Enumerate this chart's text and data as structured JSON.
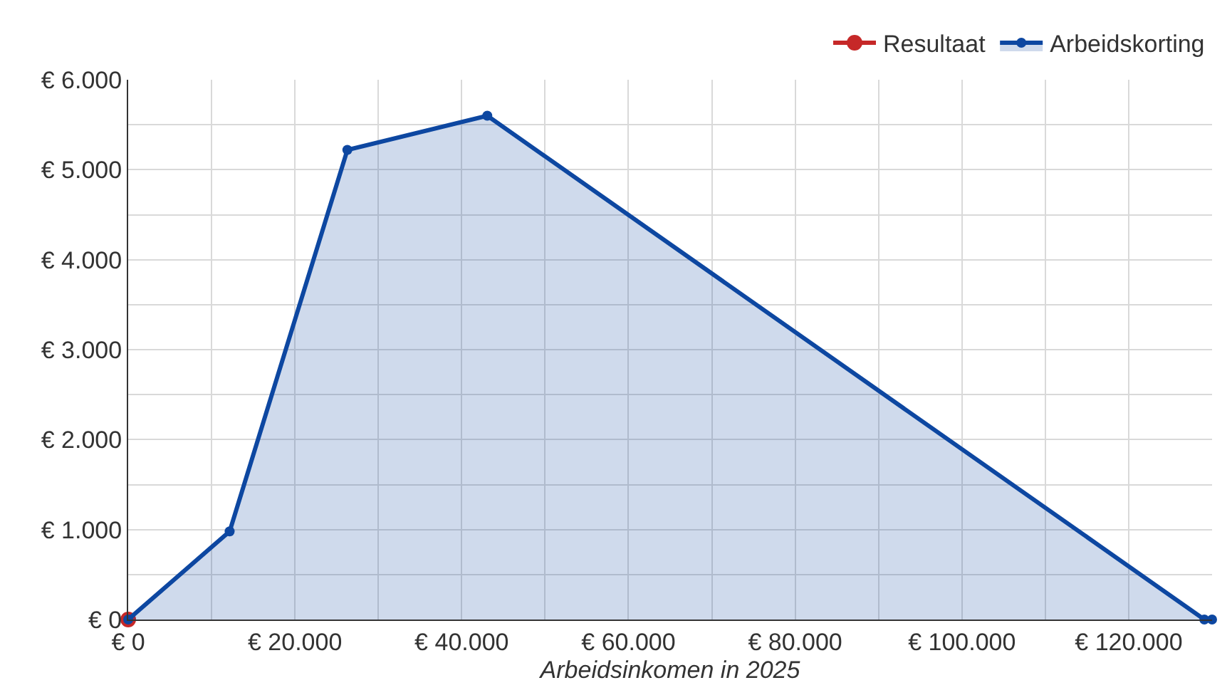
{
  "chart_data": {
    "type": "area",
    "xlabel": "Arbeidsinkomen in 2025",
    "series": [
      {
        "name": "Resultaat",
        "type": "line",
        "color": "#c62828",
        "x": [
          0
        ],
        "values": [
          0
        ]
      },
      {
        "name": "Arbeidskorting",
        "color": "#0d47a1",
        "x": [
          0,
          12169,
          26288,
          43071,
          129078,
          130000
        ],
        "values": [
          0,
          980,
          5220,
          5600,
          0,
          0
        ]
      }
    ],
    "xlim": [
      0,
      130000
    ],
    "xticks": [
      {
        "value": 0,
        "label": "€ 0"
      },
      {
        "value": 10000,
        "label": null
      },
      {
        "value": 20000,
        "label": "€ 20.000"
      },
      {
        "value": 30000,
        "label": null
      },
      {
        "value": 40000,
        "label": "€ 40.000"
      },
      {
        "value": 50000,
        "label": null
      },
      {
        "value": 60000,
        "label": "€ 60.000"
      },
      {
        "value": 70000,
        "label": null
      },
      {
        "value": 80000,
        "label": "€ 80.000"
      },
      {
        "value": 90000,
        "label": null
      },
      {
        "value": 100000,
        "label": "€ 100.000"
      },
      {
        "value": 110000,
        "label": null
      },
      {
        "value": 120000,
        "label": "€ 120.000"
      }
    ],
    "ylim": [
      0,
      6000
    ],
    "yticks": [
      {
        "value": 0,
        "label": "€ 0"
      },
      {
        "value": 500,
        "label": null
      },
      {
        "value": 1000,
        "label": "€ 1.000"
      },
      {
        "value": 1500,
        "label": null
      },
      {
        "value": 2000,
        "label": "€ 2.000"
      },
      {
        "value": 2500,
        "label": null
      },
      {
        "value": 3000,
        "label": "€ 3.000"
      },
      {
        "value": 3500,
        "label": null
      },
      {
        "value": 4000,
        "label": "€ 4.000"
      },
      {
        "value": 4500,
        "label": null
      },
      {
        "value": 5000,
        "label": "€ 5.000"
      },
      {
        "value": 5500,
        "label": null
      },
      {
        "value": 6000,
        "label": "€ 6.000"
      }
    ],
    "grid": true,
    "legend": "top right",
    "marker": "circle",
    "line_style": "solid"
  }
}
